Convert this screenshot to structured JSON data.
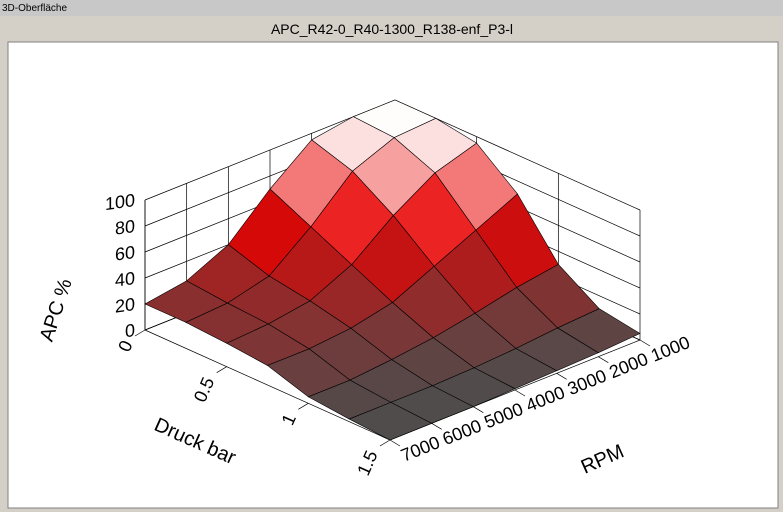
{
  "window_title": "3D-Oberfläche",
  "chart_data": {
    "type": "surface",
    "title": "APC_R42-0_R40-1300_R138-enf_P3-l",
    "x_label": "Druck bar",
    "y_label": "RPM",
    "z_label": "APC %",
    "x": [
      0,
      0.25,
      0.5,
      0.75,
      1,
      1.25,
      1.5
    ],
    "y": [
      1000,
      2000,
      3000,
      4000,
      5000,
      6000,
      7000
    ],
    "z": [
      [
        100,
        100,
        95,
        70,
        40,
        25,
        20
      ],
      [
        100,
        98,
        85,
        55,
        30,
        22,
        20
      ],
      [
        95,
        85,
        65,
        40,
        25,
        20,
        18
      ],
      [
        70,
        55,
        40,
        25,
        18,
        15,
        15
      ],
      [
        30,
        25,
        18,
        12,
        8,
        5,
        5
      ],
      [
        10,
        8,
        5,
        3,
        2,
        2,
        2
      ],
      [
        5,
        3,
        2,
        1,
        0,
        0,
        0
      ]
    ],
    "xlim": [
      0,
      1.5
    ],
    "xticks": [
      0,
      0.5,
      1,
      1.5
    ],
    "ylim": [
      1000,
      7000
    ],
    "yticks": [
      1000,
      2000,
      3000,
      4000,
      5000,
      6000,
      7000
    ],
    "zlim": [
      0,
      100
    ],
    "zticks": [
      0,
      20,
      40,
      60,
      80,
      100
    ],
    "colormap": [
      "#4d4d4d",
      "#e80000",
      "#ffffff"
    ]
  }
}
